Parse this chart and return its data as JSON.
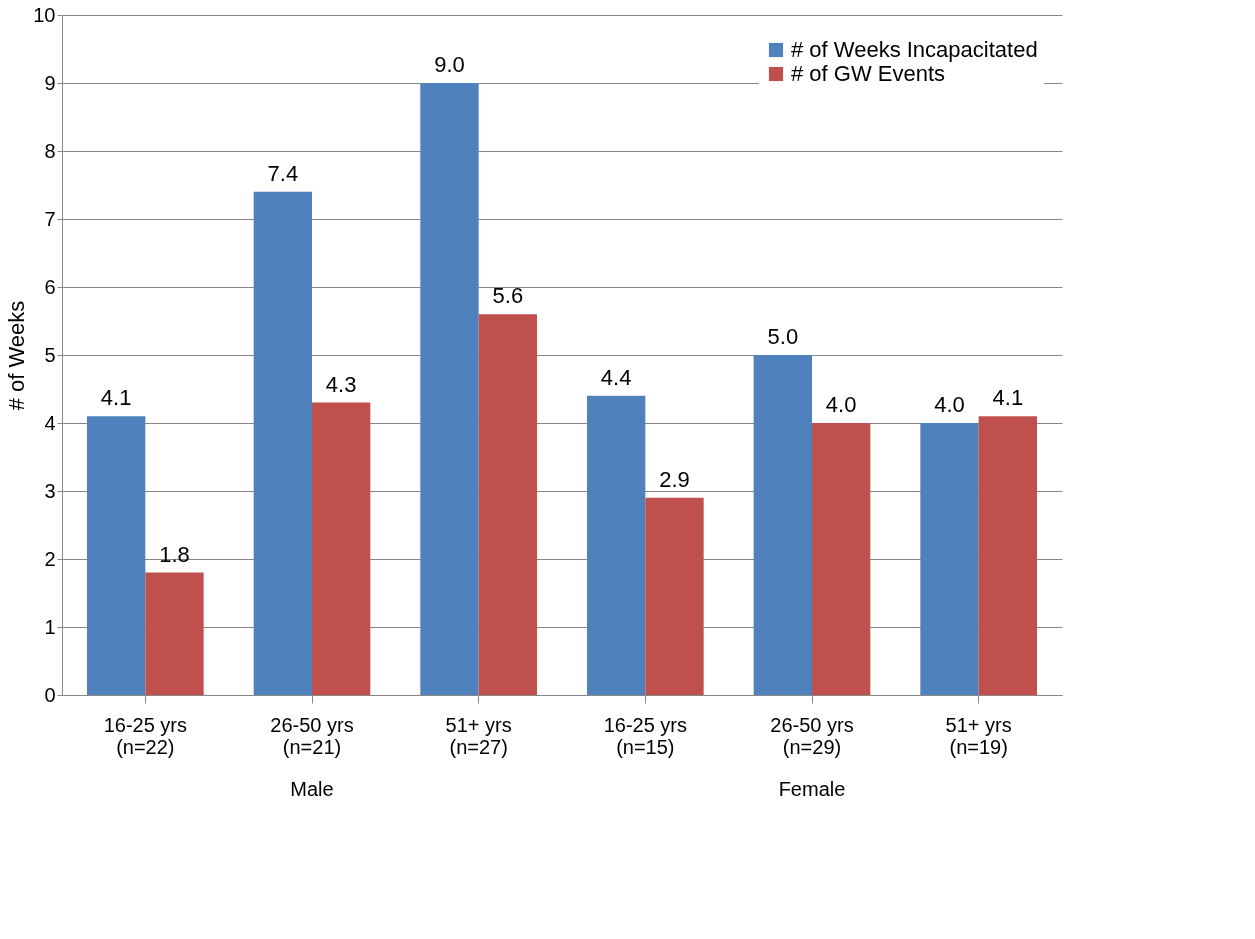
{
  "chart_data": {
    "type": "bar",
    "ylabel": "# of Weeks",
    "categories": [
      "16-25 yrs\n(n=22)",
      "26-50 yrs\n(n=21)",
      "51+ yrs\n(n=27)",
      "16-25 yrs\n(n=15)",
      "26-50 yrs\n(n=29)",
      "51+ yrs\n(n=19)"
    ],
    "series": [
      {
        "name": "# of Weeks Incapacitated",
        "color": "#4f81bd",
        "values": [
          4.1,
          7.4,
          9.0,
          4.4,
          5.0,
          4.0
        ]
      },
      {
        "name": "# of GW Events",
        "color": "#c0504d",
        "values": [
          1.8,
          4.3,
          5.6,
          2.9,
          4.0,
          4.1
        ]
      }
    ],
    "value_labels": [
      [
        "4.1",
        "7.4",
        "9.0",
        "4.4",
        "5.0",
        "4.0"
      ],
      [
        "1.8",
        "4.3",
        "5.6",
        "2.9",
        "4.0",
        "4.1"
      ]
    ],
    "annotations": [
      "Male",
      "Female"
    ],
    "ylim": [
      0,
      10
    ],
    "yticks": [
      0,
      1,
      2,
      3,
      4,
      5,
      6,
      7,
      8,
      9,
      10
    ],
    "grid": "y",
    "legend": "top right"
  }
}
